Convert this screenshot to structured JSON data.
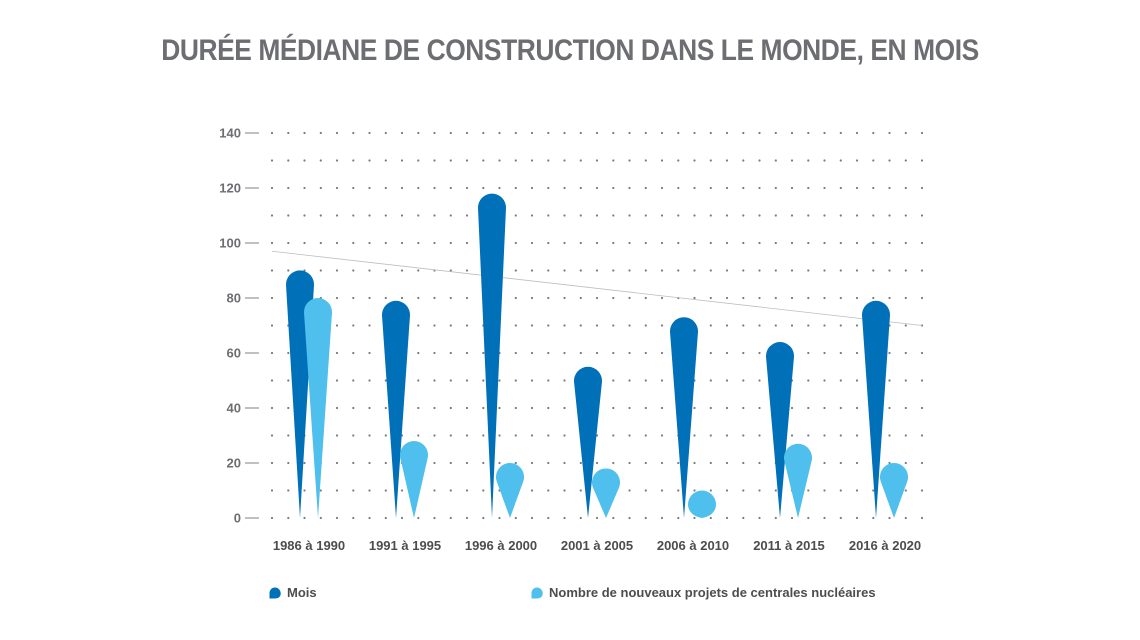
{
  "chart_data": {
    "type": "bar",
    "title": "DURÉE MÉDIANE DE CONSTRUCTION DANS LE MONDE, EN MOIS",
    "categories": [
      "1986 à 1990",
      "1991 à 1995",
      "1996 à 2000",
      "2001 à 2005",
      "2006 à 2010",
      "2011 à 2015",
      "2016 à 2020"
    ],
    "series": [
      {
        "name": "Mois",
        "values": [
          90,
          79,
          118,
          55,
          73,
          64,
          79
        ],
        "color": "#0070b9"
      },
      {
        "name": "Nombre de nouveaux projets de centrales nucléaires",
        "values": [
          80,
          28,
          20,
          18,
          10,
          27,
          20
        ],
        "color": "#4fbfee"
      }
    ],
    "ylim": [
      0,
      140
    ],
    "yticks": [
      0,
      20,
      40,
      60,
      80,
      100,
      120,
      140
    ],
    "trendline": {
      "from": 97,
      "to": 70,
      "color": "#bcbec0"
    },
    "grid": "dotted",
    "legend_position": "bottom"
  }
}
